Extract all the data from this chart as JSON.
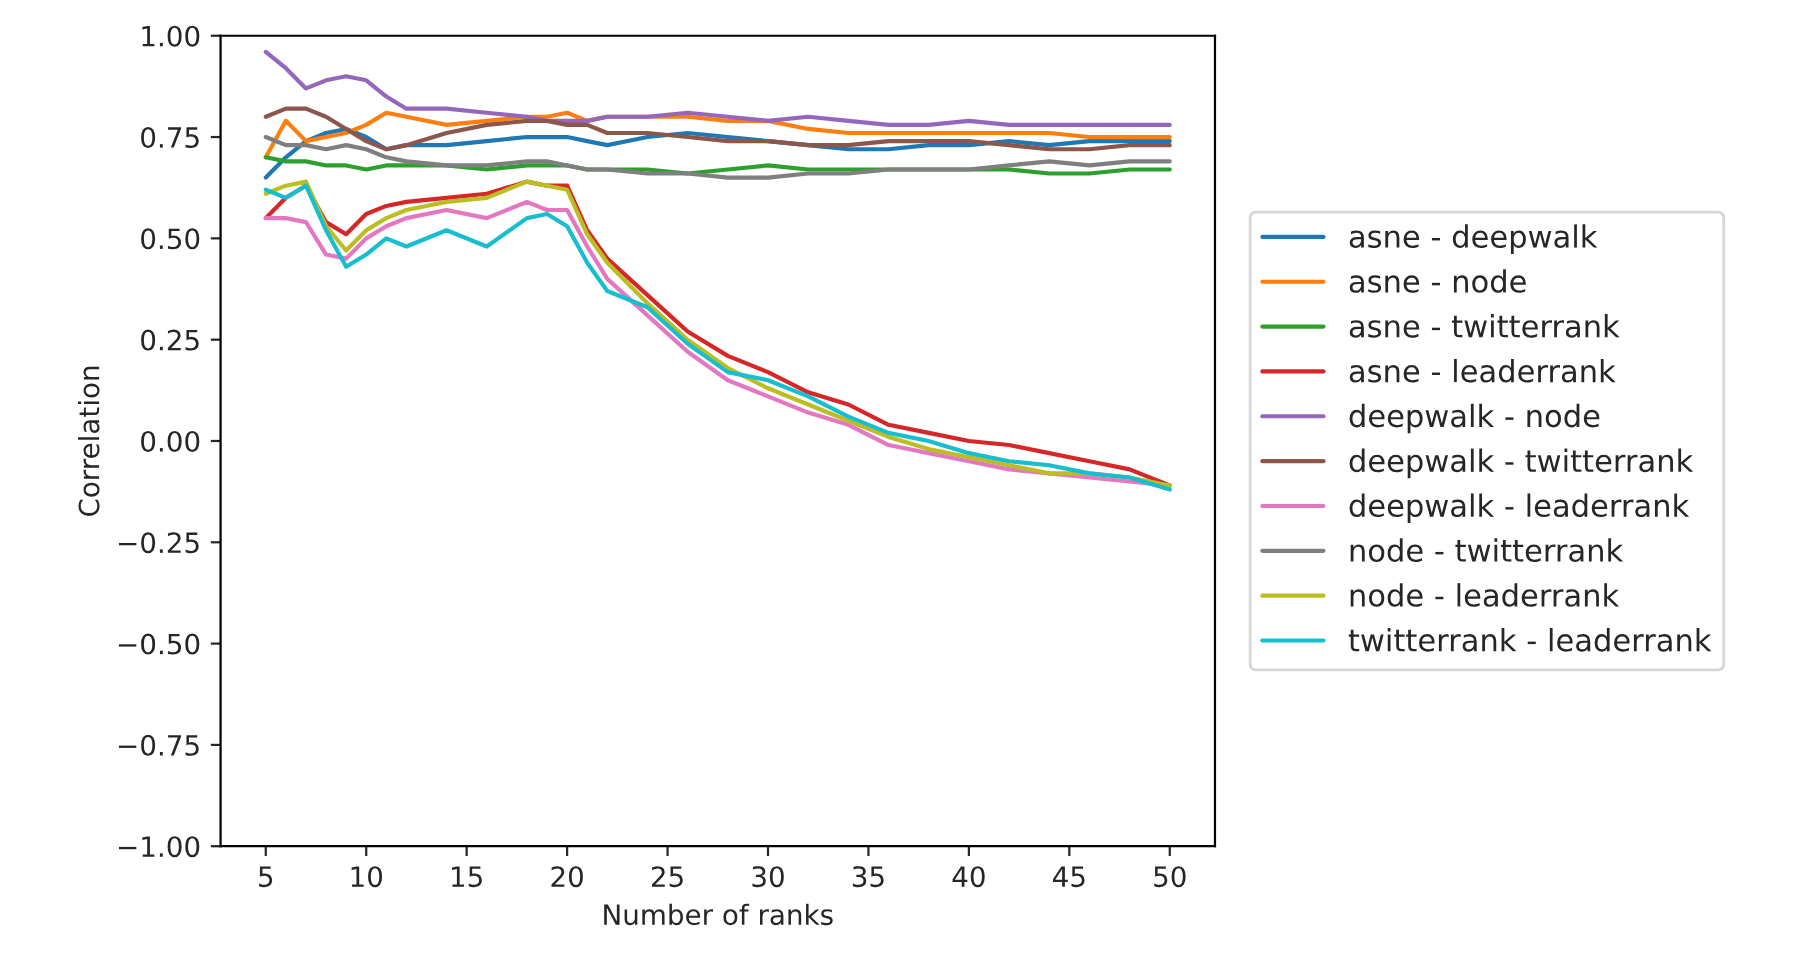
{
  "chart_data": {
    "type": "line",
    "xlabel": "Number of ranks",
    "ylabel": "Correlation",
    "x": [
      5,
      6,
      7,
      8,
      9,
      10,
      11,
      12,
      14,
      16,
      18,
      19,
      20,
      21,
      22,
      24,
      26,
      28,
      30,
      32,
      34,
      36,
      38,
      40,
      42,
      44,
      46,
      48,
      50
    ],
    "xlim": [
      2.75,
      52.25
    ],
    "xticks": [
      5,
      10,
      15,
      20,
      25,
      30,
      35,
      40,
      45,
      50
    ],
    "ylim": [
      -1,
      1
    ],
    "yticks": [
      {
        "value": -1,
        "label": "−1.00"
      },
      {
        "value": -0.75,
        "label": "−0.75"
      },
      {
        "value": -0.5,
        "label": "−0.50"
      },
      {
        "value": -0.25,
        "label": "−0.25"
      },
      {
        "value": 0,
        "label": "0.00"
      },
      {
        "value": 0.25,
        "label": "0.25"
      },
      {
        "value": 0.5,
        "label": "0.50"
      },
      {
        "value": 0.75,
        "label": "0.75"
      },
      {
        "value": 1,
        "label": "1.00"
      }
    ],
    "grid": false,
    "legend": "right",
    "marker": "none",
    "line_style": "solid",
    "series": [
      {
        "name": "asne - deepwalk",
        "color": "#1f77b4",
        "values": [
          0.65,
          0.7,
          0.74,
          0.76,
          0.77,
          0.75,
          0.72,
          0.73,
          0.73,
          0.74,
          0.75,
          0.75,
          0.75,
          0.74,
          0.73,
          0.75,
          0.76,
          0.75,
          0.74,
          0.73,
          0.72,
          0.72,
          0.73,
          0.73,
          0.74,
          0.73,
          0.74,
          0.74,
          0.74
        ]
      },
      {
        "name": "asne - node",
        "color": "#ff7f0e",
        "values": [
          0.7,
          0.79,
          0.74,
          0.75,
          0.76,
          0.78,
          0.81,
          0.8,
          0.78,
          0.79,
          0.8,
          0.8,
          0.81,
          0.79,
          0.8,
          0.8,
          0.8,
          0.79,
          0.79,
          0.77,
          0.76,
          0.76,
          0.76,
          0.76,
          0.76,
          0.76,
          0.75,
          0.75,
          0.75
        ]
      },
      {
        "name": "asne - twitterrank",
        "color": "#2ca02c",
        "values": [
          0.7,
          0.69,
          0.69,
          0.68,
          0.68,
          0.67,
          0.68,
          0.68,
          0.68,
          0.67,
          0.68,
          0.68,
          0.68,
          0.67,
          0.67,
          0.67,
          0.66,
          0.67,
          0.68,
          0.67,
          0.67,
          0.67,
          0.67,
          0.67,
          0.67,
          0.66,
          0.66,
          0.67,
          0.67
        ]
      },
      {
        "name": "asne - leaderrank",
        "color": "#d62728",
        "values": [
          0.55,
          0.6,
          0.63,
          0.54,
          0.51,
          0.56,
          0.58,
          0.59,
          0.6,
          0.61,
          0.64,
          0.63,
          0.63,
          0.52,
          0.45,
          0.36,
          0.27,
          0.21,
          0.17,
          0.12,
          0.09,
          0.04,
          0.02,
          0.0,
          -0.01,
          -0.03,
          -0.05,
          -0.07,
          -0.11
        ]
      },
      {
        "name": "deepwalk - node",
        "color": "#9467bd",
        "values": [
          0.96,
          0.92,
          0.87,
          0.89,
          0.9,
          0.89,
          0.85,
          0.82,
          0.82,
          0.81,
          0.8,
          0.79,
          0.79,
          0.79,
          0.8,
          0.8,
          0.81,
          0.8,
          0.79,
          0.8,
          0.79,
          0.78,
          0.78,
          0.79,
          0.78,
          0.78,
          0.78,
          0.78,
          0.78
        ]
      },
      {
        "name": "deepwalk - twitterrank",
        "color": "#8c564b",
        "values": [
          0.8,
          0.82,
          0.82,
          0.8,
          0.77,
          0.74,
          0.72,
          0.73,
          0.76,
          0.78,
          0.79,
          0.79,
          0.78,
          0.78,
          0.76,
          0.76,
          0.75,
          0.74,
          0.74,
          0.73,
          0.73,
          0.74,
          0.74,
          0.74,
          0.73,
          0.72,
          0.72,
          0.73,
          0.73
        ]
      },
      {
        "name": "deepwalk - leaderrank",
        "color": "#e377c2",
        "values": [
          0.55,
          0.55,
          0.54,
          0.46,
          0.45,
          0.5,
          0.53,
          0.55,
          0.57,
          0.55,
          0.59,
          0.57,
          0.57,
          0.48,
          0.4,
          0.31,
          0.22,
          0.15,
          0.11,
          0.07,
          0.04,
          -0.01,
          -0.03,
          -0.05,
          -0.07,
          -0.08,
          -0.09,
          -0.1,
          -0.11
        ]
      },
      {
        "name": "node - twitterrank",
        "color": "#7f7f7f",
        "values": [
          0.75,
          0.73,
          0.73,
          0.72,
          0.73,
          0.72,
          0.7,
          0.69,
          0.68,
          0.68,
          0.69,
          0.69,
          0.68,
          0.67,
          0.67,
          0.66,
          0.66,
          0.65,
          0.65,
          0.66,
          0.66,
          0.67,
          0.67,
          0.67,
          0.68,
          0.69,
          0.68,
          0.69,
          0.69
        ]
      },
      {
        "name": "node - leaderrank",
        "color": "#bcbd22",
        "values": [
          0.61,
          0.63,
          0.64,
          0.53,
          0.47,
          0.52,
          0.55,
          0.57,
          0.59,
          0.6,
          0.64,
          0.63,
          0.62,
          0.51,
          0.44,
          0.34,
          0.25,
          0.18,
          0.13,
          0.09,
          0.05,
          0.01,
          -0.02,
          -0.04,
          -0.06,
          -0.08,
          -0.08,
          -0.09,
          -0.11
        ]
      },
      {
        "name": "twitterrank - leaderrank",
        "color": "#17becf",
        "values": [
          0.62,
          0.6,
          0.63,
          0.52,
          0.43,
          0.46,
          0.5,
          0.48,
          0.52,
          0.48,
          0.55,
          0.56,
          0.53,
          0.44,
          0.37,
          0.33,
          0.24,
          0.17,
          0.15,
          0.11,
          0.06,
          0.02,
          0.0,
          -0.03,
          -0.05,
          -0.06,
          -0.08,
          -0.09,
          -0.12
        ]
      }
    ]
  }
}
